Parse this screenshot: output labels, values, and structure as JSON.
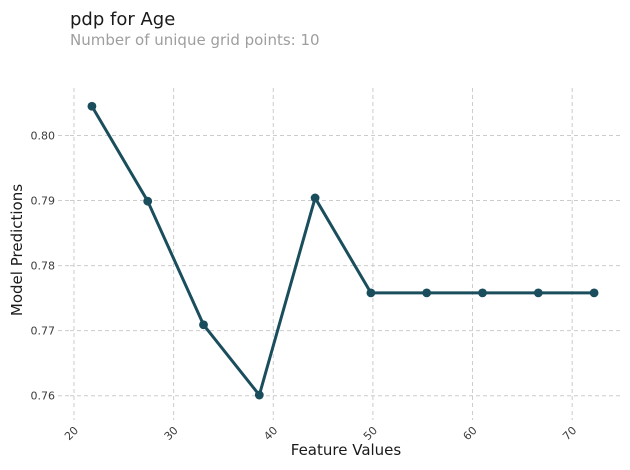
{
  "header": {
    "title": "pdp for Age",
    "subtitle": "Number of unique grid points: 10"
  },
  "chart_data": {
    "type": "line",
    "title": "pdp for Age",
    "subtitle": "Number of unique grid points: 10",
    "xlabel": "Feature Values",
    "ylabel": "Model Predictions",
    "x": [
      21.8,
      27.4,
      33.0,
      38.6,
      44.2,
      49.8,
      55.4,
      61.0,
      66.6,
      72.2
    ],
    "y": [
      0.8045,
      0.7899,
      0.7709,
      0.7601,
      0.7904,
      0.7758,
      0.7758,
      0.7758,
      0.7758,
      0.7758
    ],
    "xticks": [
      20,
      30,
      40,
      50,
      60,
      70
    ],
    "xtick_labels": [
      "20",
      "30",
      "40",
      "50",
      "60",
      "70"
    ],
    "yticks": [
      0.8,
      0.79,
      0.78,
      0.77,
      0.76
    ],
    "ytick_labels": [
      "0.80",
      "0.79",
      "0.78",
      "0.77",
      "0.76"
    ],
    "xlim": [
      19.6,
      75.0
    ],
    "ylim": [
      0.7578,
      0.8073
    ],
    "grid": true,
    "legend_position": "none",
    "line_color": "#1A4E5D",
    "marker_color": "#1A4E5D",
    "grid_color": "#cccccc",
    "tick_label_color": "#3d3d3d",
    "title_color": "#1a1a1a",
    "subtitle_color": "#9e9e9e"
  }
}
